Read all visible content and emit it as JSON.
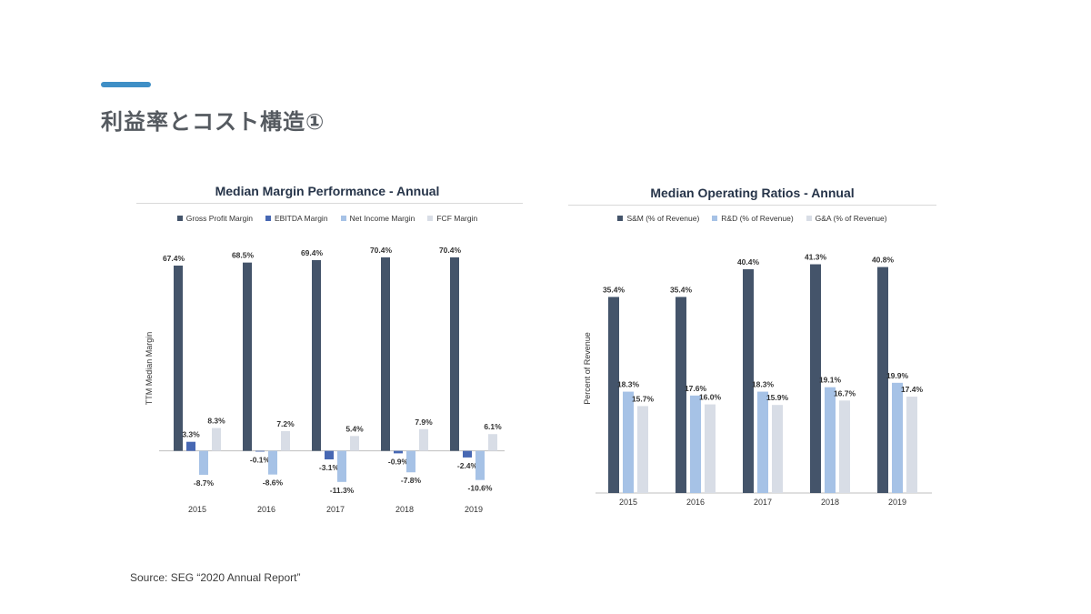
{
  "page": {
    "title": "利益率とコスト構造①",
    "source": "Source: SEG “2020 Annual Report”",
    "accent_color": "#3f8fc6"
  },
  "chart_data": [
    {
      "type": "bar",
      "title": "Median Margin Performance - Annual",
      "ylabel": "TTM Median Margin",
      "xlabel": "",
      "categories": [
        "2015",
        "2016",
        "2017",
        "2018",
        "2019"
      ],
      "ylim": [
        -15,
        75
      ],
      "grid": false,
      "legend_position": "top",
      "series": [
        {
          "name": "Gross Profit Margin",
          "color": "#44546a",
          "values": [
            67.4,
            68.5,
            69.4,
            70.4,
            70.4
          ],
          "labels": [
            "67.4%",
            "68.5%",
            "69.4%",
            "70.4%",
            "70.4%"
          ]
        },
        {
          "name": "EBITDA Margin",
          "color": "#4768b3",
          "values": [
            3.3,
            -0.1,
            -3.1,
            -0.9,
            -2.4
          ],
          "labels": [
            "3.3%",
            "-0.1%",
            "-3.1%",
            "-0.9%",
            "-2.4%"
          ]
        },
        {
          "name": "Net Income Margin",
          "color": "#a6c2e6",
          "values": [
            -8.7,
            -8.6,
            -11.3,
            -7.8,
            -10.6
          ],
          "labels": [
            "-8.7%",
            "-8.6%",
            "-11.3%",
            "-7.8%",
            "-10.6%"
          ]
        },
        {
          "name": "FCF Margin",
          "color": "#d8dde6",
          "values": [
            8.3,
            7.2,
            5.4,
            7.9,
            6.1
          ],
          "labels": [
            "8.3%",
            "7.2%",
            "5.4%",
            "7.9%",
            "6.1%"
          ]
        }
      ]
    },
    {
      "type": "bar",
      "title": "Median Operating Ratios - Annual",
      "ylabel": "Percent of Revenue",
      "xlabel": "",
      "categories": [
        "2015",
        "2016",
        "2017",
        "2018",
        "2019"
      ],
      "ylim": [
        0,
        45
      ],
      "grid": false,
      "legend_position": "top",
      "series": [
        {
          "name": "S&M (% of Revenue)",
          "color": "#44546a",
          "values": [
            35.4,
            35.4,
            40.4,
            41.3,
            40.8
          ],
          "labels": [
            "35.4%",
            "35.4%",
            "40.4%",
            "41.3%",
            "40.8%"
          ]
        },
        {
          "name": "R&D (% of Revenue)",
          "color": "#a6c2e6",
          "values": [
            18.3,
            17.6,
            18.3,
            19.1,
            19.9
          ],
          "labels": [
            "18.3%",
            "17.6%",
            "18.3%",
            "19.1%",
            "19.9%"
          ]
        },
        {
          "name": "G&A (% of Revenue)",
          "color": "#d8dde6",
          "values": [
            15.7,
            16.0,
            15.9,
            16.7,
            17.4
          ],
          "labels": [
            "15.7%",
            "16.0%",
            "15.9%",
            "16.7%",
            "17.4%"
          ]
        }
      ]
    }
  ]
}
